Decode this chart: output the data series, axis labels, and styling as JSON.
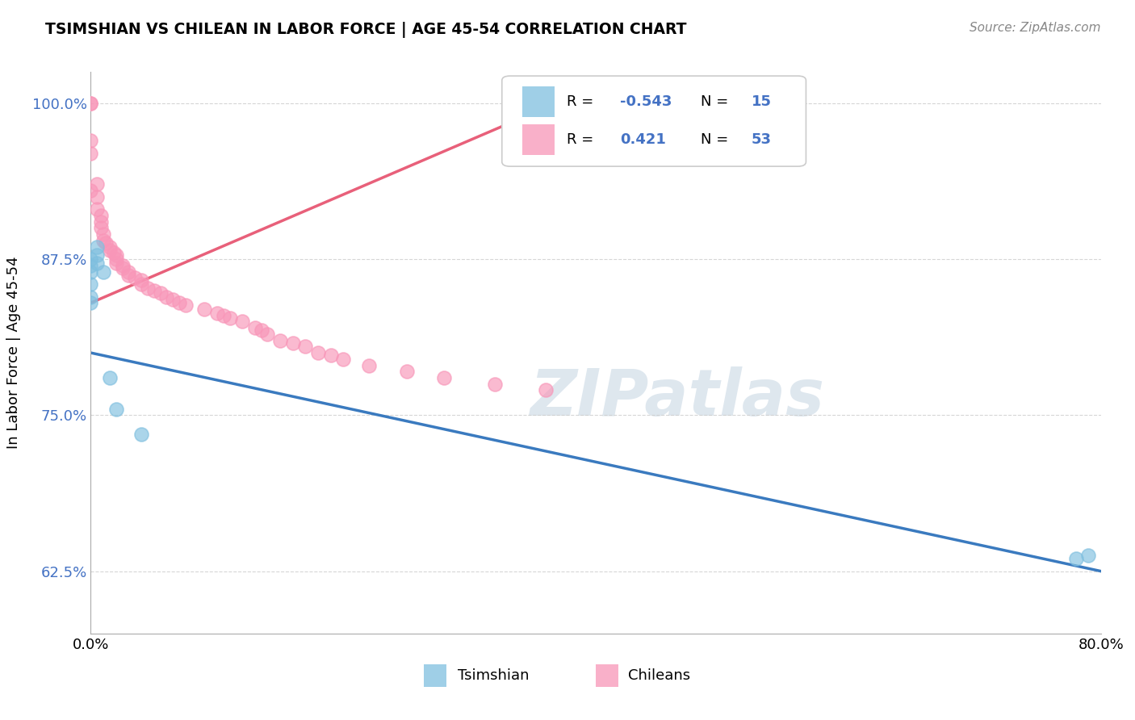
{
  "title": "TSIMSHIAN VS CHILEAN IN LABOR FORCE | AGE 45-54 CORRELATION CHART",
  "source_text": "Source: ZipAtlas.com",
  "ylabel": "In Labor Force | Age 45-54",
  "tsimshian_color": "#7fbfdf",
  "chilean_color": "#f896b8",
  "tsimshian_line_color": "#3a7abf",
  "chilean_line_color": "#e8607a",
  "xlim": [
    0.0,
    0.8
  ],
  "ylim": [
    0.575,
    1.025
  ],
  "watermark": "ZIPatlas",
  "r_tsimshian": "-0.543",
  "n_tsimshian": "15",
  "r_chilean": "0.421",
  "n_chilean": "53",
  "tsimshian_x": [
    0.0,
    0.0,
    0.0,
    0.0,
    0.0,
    0.0,
    0.005,
    0.005,
    0.005,
    0.01,
    0.015,
    0.02,
    0.04,
    0.78,
    0.79
  ],
  "tsimshian_y": [
    0.875,
    0.87,
    0.865,
    0.855,
    0.845,
    0.84,
    0.885,
    0.878,
    0.872,
    0.865,
    0.78,
    0.755,
    0.735,
    0.635,
    0.638
  ],
  "chilean_x": [
    0.0,
    0.0,
    0.0,
    0.0,
    0.0,
    0.005,
    0.005,
    0.005,
    0.008,
    0.008,
    0.008,
    0.01,
    0.01,
    0.012,
    0.015,
    0.015,
    0.018,
    0.02,
    0.02,
    0.02,
    0.025,
    0.025,
    0.03,
    0.03,
    0.035,
    0.04,
    0.04,
    0.045,
    0.05,
    0.055,
    0.06,
    0.065,
    0.07,
    0.075,
    0.09,
    0.1,
    0.105,
    0.11,
    0.12,
    0.13,
    0.135,
    0.14,
    0.15,
    0.16,
    0.17,
    0.18,
    0.19,
    0.2,
    0.22,
    0.25,
    0.28,
    0.32,
    0.36
  ],
  "chilean_y": [
    1.0,
    1.0,
    0.97,
    0.96,
    0.93,
    0.935,
    0.925,
    0.915,
    0.91,
    0.905,
    0.9,
    0.895,
    0.89,
    0.888,
    0.885,
    0.882,
    0.88,
    0.878,
    0.875,
    0.872,
    0.87,
    0.868,
    0.865,
    0.862,
    0.86,
    0.858,
    0.855,
    0.852,
    0.85,
    0.848,
    0.845,
    0.843,
    0.84,
    0.838,
    0.835,
    0.832,
    0.83,
    0.828,
    0.825,
    0.82,
    0.818,
    0.815,
    0.81,
    0.808,
    0.805,
    0.8,
    0.798,
    0.795,
    0.79,
    0.785,
    0.78,
    0.775,
    0.77
  ],
  "tsim_line_x": [
    0.0,
    0.8
  ],
  "tsim_line_y": [
    0.8,
    0.625
  ],
  "chil_line_x": [
    0.0,
    0.38
  ],
  "chil_line_y": [
    0.84,
    1.005
  ]
}
